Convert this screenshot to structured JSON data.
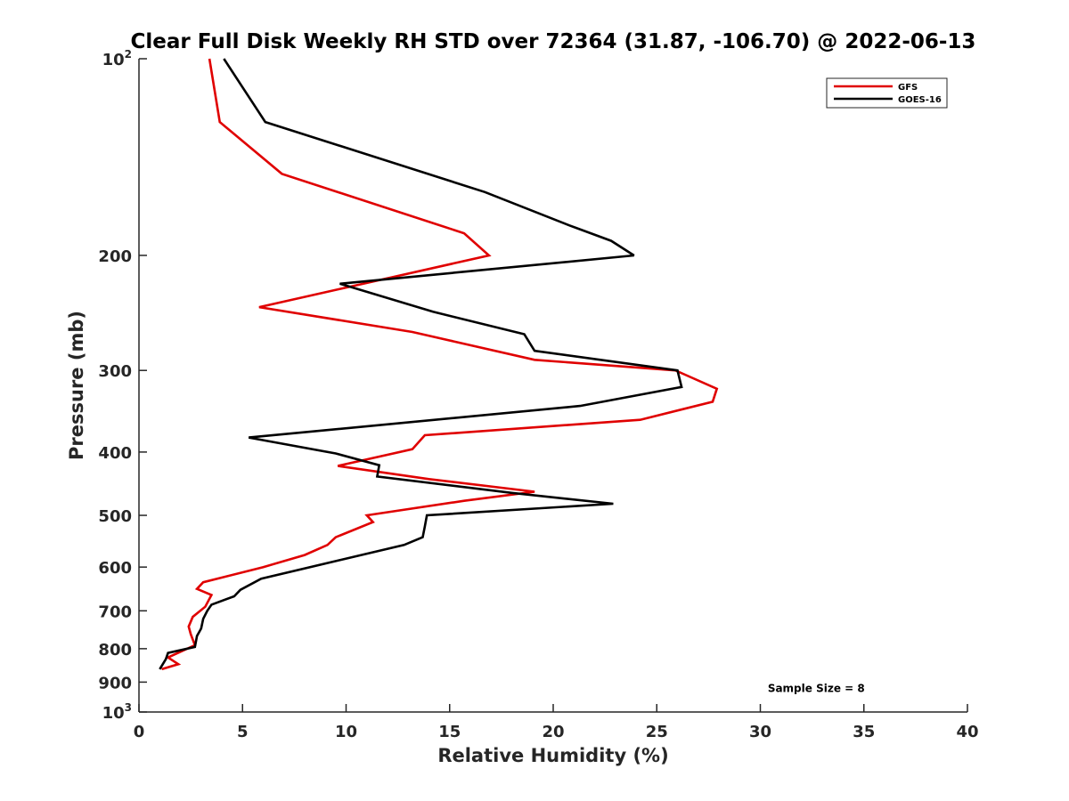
{
  "chart_data": {
    "type": "line",
    "title": "Clear Full Disk Weekly RH STD over 72364 (31.87, -106.70) @ 2022-06-13",
    "xlabel": "Relative Humidity (%)",
    "ylabel": "Pressure (mb)",
    "xlim": [
      0,
      40
    ],
    "ylim": [
      100,
      1000
    ],
    "y_scale": "log",
    "y_reversed": true,
    "grid": false,
    "legend_position": "top-right",
    "x_ticks": [
      0,
      5,
      10,
      15,
      20,
      25,
      30,
      35,
      40
    ],
    "y_ticks": [
      {
        "value": 100,
        "base": "10",
        "exp": "2"
      },
      {
        "value": 200,
        "label": "200"
      },
      {
        "value": 300,
        "label": "300"
      },
      {
        "value": 400,
        "label": "400"
      },
      {
        "value": 500,
        "label": "500"
      },
      {
        "value": 600,
        "label": "600"
      },
      {
        "value": 700,
        "label": "700"
      },
      {
        "value": 800,
        "label": "800"
      },
      {
        "value": 900,
        "label": "900"
      },
      {
        "value": 1000,
        "base": "10",
        "exp": "3"
      }
    ],
    "series": [
      {
        "name": "GFS",
        "color": "#e00000",
        "points": [
          [
            3.4,
            100
          ],
          [
            3.9,
            125
          ],
          [
            6.9,
            150
          ],
          [
            15.7,
            185
          ],
          [
            16.9,
            200
          ],
          [
            5.8,
            240
          ],
          [
            13.2,
            262
          ],
          [
            19.1,
            289
          ],
          [
            25.9,
            300
          ],
          [
            27.9,
            320
          ],
          [
            27.7,
            335
          ],
          [
            24.2,
            357
          ],
          [
            13.8,
            377
          ],
          [
            13.2,
            396
          ],
          [
            9.6,
            420
          ],
          [
            14.0,
            440
          ],
          [
            19.1,
            460
          ],
          [
            15.7,
            475
          ],
          [
            11.0,
            500
          ],
          [
            11.3,
            512
          ],
          [
            9.5,
            540
          ],
          [
            9.1,
            555
          ],
          [
            8.0,
            575
          ],
          [
            6.0,
            600
          ],
          [
            3.1,
            633
          ],
          [
            2.8,
            648
          ],
          [
            3.5,
            662
          ],
          [
            3.2,
            690
          ],
          [
            2.6,
            715
          ],
          [
            2.4,
            740
          ],
          [
            2.5,
            760
          ],
          [
            2.7,
            790
          ],
          [
            1.4,
            825
          ],
          [
            1.9,
            845
          ],
          [
            1.1,
            860
          ]
        ]
      },
      {
        "name": "GOES-16",
        "color": "#000000",
        "points": [
          [
            4.1,
            100
          ],
          [
            6.1,
            125
          ],
          [
            16.7,
            160
          ],
          [
            20.8,
            180
          ],
          [
            22.8,
            190
          ],
          [
            23.9,
            200
          ],
          [
            9.7,
            221
          ],
          [
            14.2,
            244
          ],
          [
            18.6,
            264
          ],
          [
            19.1,
            280
          ],
          [
            26.0,
            300
          ],
          [
            26.2,
            318
          ],
          [
            21.3,
            340
          ],
          [
            5.3,
            380
          ],
          [
            9.5,
            402
          ],
          [
            11.6,
            419
          ],
          [
            11.5,
            436
          ],
          [
            18.0,
            462
          ],
          [
            22.9,
            480
          ],
          [
            13.9,
            500
          ],
          [
            13.8,
            520
          ],
          [
            13.7,
            540
          ],
          [
            12.8,
            555
          ],
          [
            5.9,
            625
          ],
          [
            4.9,
            650
          ],
          [
            4.6,
            665
          ],
          [
            3.5,
            685
          ],
          [
            3.3,
            700
          ],
          [
            3.1,
            720
          ],
          [
            3.0,
            745
          ],
          [
            2.8,
            765
          ],
          [
            2.7,
            795
          ],
          [
            1.4,
            812
          ],
          [
            1.3,
            830
          ],
          [
            1.0,
            860
          ]
        ]
      }
    ],
    "annotations": [
      {
        "text": "Sample Size = 8",
        "x": 32.7,
        "y": 920
      }
    ]
  }
}
